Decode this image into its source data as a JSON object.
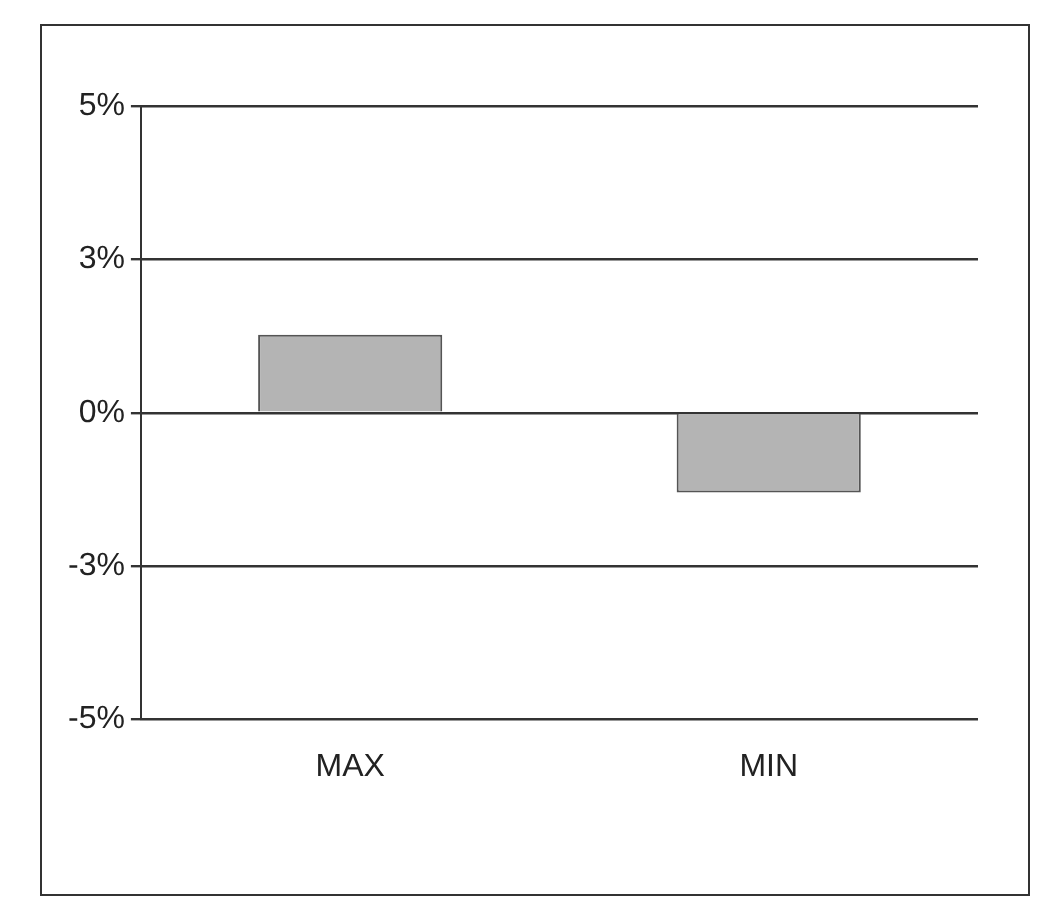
{
  "chart_data": {
    "type": "bar",
    "categories": [
      "MAX",
      "MIN"
    ],
    "values": [
      1.27,
      -1.3
    ],
    "color": "#b4b4b4",
    "ylim": [
      -5,
      5
    ],
    "yticks": [
      {
        "value": -5,
        "label": "-5%"
      },
      {
        "value": -2.5,
        "label": "-3%"
      },
      {
        "value": 0,
        "label": "0%"
      },
      {
        "value": 2.5,
        "label": "3%"
      },
      {
        "value": 5,
        "label": "5%"
      }
    ],
    "grid": "y",
    "legend": false
  }
}
